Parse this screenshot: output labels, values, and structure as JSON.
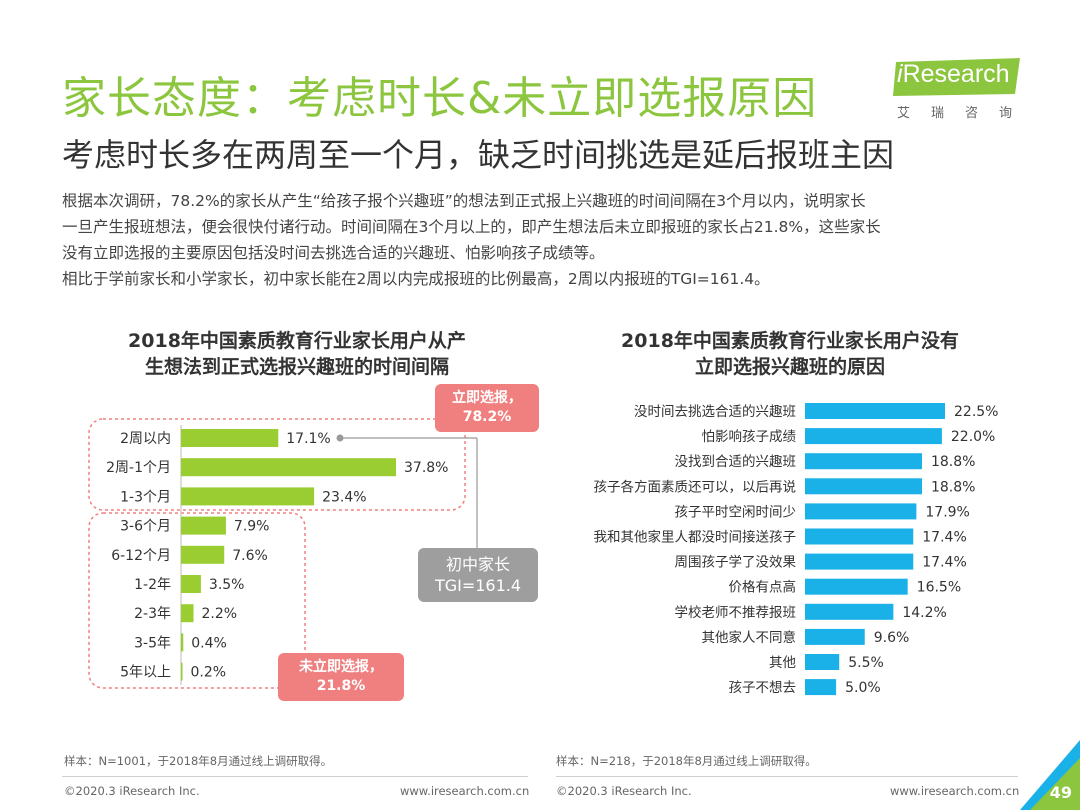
{
  "header": {
    "title": "家长态度：考虑时长&未立即选报原因",
    "subtitle": "考虑时长多在两周至一个月，缺乏时间挑选是延后报班主因"
  },
  "logo": {
    "brand_i": "i",
    "brand_rest": "Research",
    "sub": "艾瑞咨询",
    "color": "#8cc63f"
  },
  "intro": [
    "根据本次调研，78.2%的家长从产生“给孩子报个兴趣班”的想法到正式报上兴趣班的时间间隔在3个月以内，说明家长",
    "一旦产生报班想法，便会很快付诸行动。时间间隔在3个月以上的，即产生想法后未立即报班的家长占21.8%，这些家长",
    "没有立即选报的主要原因包括没时间去挑选合适的兴趣班、怕影响孩子成绩等。",
    "相比于学前家长和小学家长，初中家长能在2周以内完成报班的比例最高，2周以内报班的TGI=161.4。"
  ],
  "chart_data": [
    {
      "type": "bar",
      "orientation": "horizontal",
      "title_line1": "2018年中国素质教育行业家长用户从产",
      "title_line2": "生想法到正式选报兴趣班的时间间隔",
      "categories": [
        "2周以内",
        "2周-1个月",
        "1-3个月",
        "3-6个月",
        "6-12个月",
        "1-2年",
        "2-3年",
        "3-5年",
        "5年以上"
      ],
      "values": [
        17.1,
        37.8,
        23.4,
        7.9,
        7.6,
        3.5,
        2.2,
        0.4,
        0.2
      ],
      "value_labels": [
        "17.1%",
        "37.8%",
        "23.4%",
        "7.9%",
        "7.6%",
        "3.5%",
        "2.2%",
        "0.4%",
        "0.2%"
      ],
      "color": "#9acd32",
      "xlim": [
        0,
        40
      ],
      "annotations": {
        "immediate_line1": "立即选报，",
        "immediate_line2": "78.2%",
        "delayed_line1": "未立即选报，",
        "delayed_line2": "21.8%",
        "tgi_line1": "初中家长",
        "tgi_line2": "TGI=161.4"
      }
    },
    {
      "type": "bar",
      "orientation": "horizontal",
      "title_line1": "2018年中国素质教育行业家长用户没有",
      "title_line2": "立即选报兴趣班的原因",
      "categories": [
        "没时间去挑选合适的兴趣班",
        "怕影响孩子成绩",
        "没找到合适的兴趣班",
        "孩子各方面素质还可以，以后再说",
        "孩子平时空闲时间少",
        "我和其他家里人都没时间接送孩子",
        "周围孩子学了没效果",
        "价格有点高",
        "学校老师不推荐报班",
        "其他家人不同意",
        "其他",
        "孩子不想去"
      ],
      "values": [
        22.5,
        22.0,
        18.8,
        18.8,
        17.9,
        17.4,
        17.4,
        16.5,
        14.2,
        9.6,
        5.5,
        5.0
      ],
      "value_labels": [
        "22.5%",
        "22.0%",
        "18.8%",
        "18.8%",
        "17.9%",
        "17.4%",
        "17.4%",
        "16.5%",
        "14.2%",
        "9.6%",
        "5.5%",
        "5.0%"
      ],
      "color": "#1ab0e8",
      "xlim": [
        0,
        25
      ]
    }
  ],
  "footer": {
    "left_source": "样本：N=1001，于2018年8月通过线上调研取得。",
    "right_source": "样本：N=218，于2018年8月通过线上调研取得。",
    "copyright_left": "©2020.3 iResearch Inc.",
    "url_left": "www.iresearch.com.cn",
    "copyright_right": "©2020.3 iResearch Inc.",
    "url_right": "www.iresearch.com.cn",
    "page_number": "49"
  }
}
